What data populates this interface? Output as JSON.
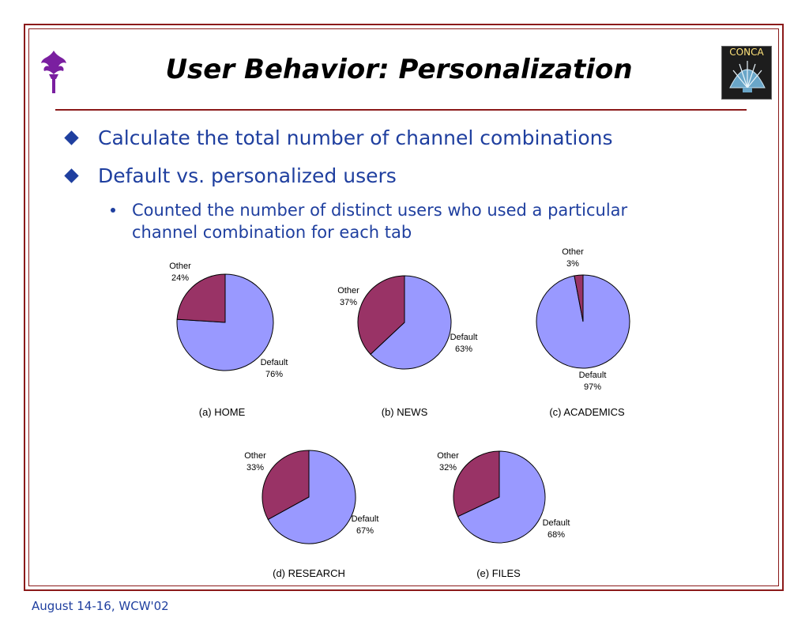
{
  "slide": {
    "title": "User Behavior: Personalization",
    "logo_right_text": "CONCA",
    "bullets": [
      "Calculate the total number of channel combinations",
      "Default vs. personalized users"
    ],
    "sub_bullet_lines": [
      "Counted the number of distinct users who used a particular",
      "channel combination for each tab"
    ],
    "footer": "August 14-16, WCW'02"
  },
  "colors": {
    "default": "#9999ff",
    "other": "#993366",
    "accent": "#1f3f9f",
    "frame": "#8b1a1a"
  },
  "chart_data": [
    {
      "type": "pie",
      "caption": "(a) HOME",
      "slices": [
        {
          "label": "Default",
          "value": 76,
          "display": "76%"
        },
        {
          "label": "Other",
          "value": 24,
          "display": "24%"
        }
      ]
    },
    {
      "type": "pie",
      "caption": "(b) NEWS",
      "slices": [
        {
          "label": "Default",
          "value": 63,
          "display": "63%"
        },
        {
          "label": "Other",
          "value": 37,
          "display": "37%"
        }
      ]
    },
    {
      "type": "pie",
      "caption": "(c) ACADEMICS",
      "slices": [
        {
          "label": "Default",
          "value": 97,
          "display": "97%"
        },
        {
          "label": "Other",
          "value": 3,
          "display": "3%"
        }
      ]
    },
    {
      "type": "pie",
      "caption": "(d) RESEARCH",
      "slices": [
        {
          "label": "Default",
          "value": 67,
          "display": "67%"
        },
        {
          "label": "Other",
          "value": 33,
          "display": "33%"
        }
      ]
    },
    {
      "type": "pie",
      "caption": "(e) FILES",
      "slices": [
        {
          "label": "Default",
          "value": 68,
          "display": "68%"
        },
        {
          "label": "Other",
          "value": 32,
          "display": "32%"
        }
      ]
    }
  ]
}
